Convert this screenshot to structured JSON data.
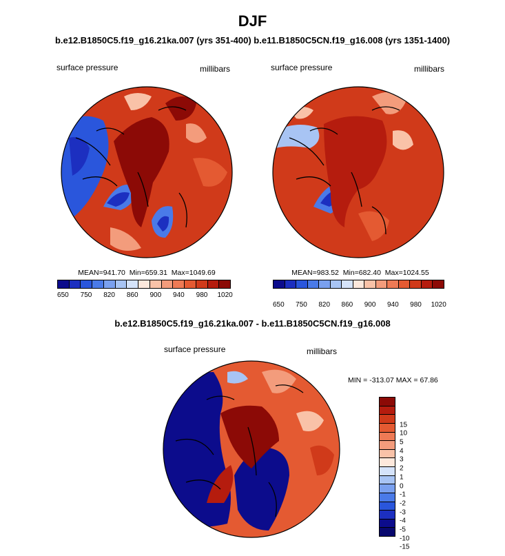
{
  "figure": {
    "title": "DJF",
    "subtitle": "b.e12.B1850C5.f19_g16.21ka.007 (yrs 351-400) b.e11.B1850C5CN.f19_g16.008 (yrs 1351-1400)",
    "diff_title": "b.e12.B1850C5.f19_g16.21ka.007 - b.e11.B1850C5CN.f19_g16.008"
  },
  "chart_data": [
    {
      "type": "heatmap",
      "projection": "polar stereographic (north pole)",
      "left_label": "surface pressure",
      "right_label": "millibars",
      "stats": {
        "mean_label": "MEAN=",
        "mean": "941.70",
        "min_label": "Min=",
        "min": "659.31",
        "max_label": "Max=",
        "max": "1049.69"
      },
      "colorbar": {
        "orientation": "horizontal",
        "tick_labels": [
          "650",
          "750",
          "820",
          "860",
          "900",
          "940",
          "980",
          "1020"
        ],
        "colors": [
          "#0c0c8c",
          "#1c2fc0",
          "#2a56dc",
          "#4a7ae8",
          "#7aa0ef",
          "#a8c4f4",
          "#d5e3fa",
          "#fde8dc",
          "#f9c2a8",
          "#f39c7c",
          "#ee7a55",
          "#e45a32",
          "#d03a1a",
          "#b51c0e",
          "#8c0a06"
        ]
      }
    },
    {
      "type": "heatmap",
      "projection": "polar stereographic (north pole)",
      "left_label": "surface pressure",
      "right_label": "millibars",
      "stats": {
        "mean_label": "MEAN=",
        "mean": "983.52",
        "min_label": "Min=",
        "min": "682.40",
        "max_label": "Max=",
        "max": "1024.55"
      },
      "colorbar": {
        "orientation": "horizontal",
        "tick_labels": [
          "650",
          "750",
          "820",
          "860",
          "900",
          "940",
          "980",
          "1020"
        ],
        "colors": [
          "#0c0c8c",
          "#1c2fc0",
          "#2a56dc",
          "#4a7ae8",
          "#7aa0ef",
          "#a8c4f4",
          "#d5e3fa",
          "#fde8dc",
          "#f9c2a8",
          "#f39c7c",
          "#ee7a55",
          "#e45a32",
          "#d03a1a",
          "#b51c0e",
          "#8c0a06"
        ]
      }
    },
    {
      "type": "heatmap",
      "projection": "polar stereographic (north pole)",
      "left_label": "surface pressure",
      "right_label": "millibars",
      "stats": {
        "min_label": "MIN =",
        "min": "-313.07",
        "max_label": "MAX =",
        "max": "67.86"
      },
      "colorbar": {
        "orientation": "vertical",
        "tick_labels": [
          "15",
          "10",
          "5",
          "4",
          "3",
          "2",
          "1",
          "0",
          "-1",
          "-2",
          "-3",
          "-4",
          "-5",
          "-10",
          "-15"
        ],
        "colors": [
          "#8c0a06",
          "#b51c0e",
          "#d03a1a",
          "#e45a32",
          "#ee7a55",
          "#f39c7c",
          "#f9c2a8",
          "#fde8dc",
          "#d5e3fa",
          "#a8c4f4",
          "#7aa0ef",
          "#4a7ae8",
          "#2a56dc",
          "#1c2fc0",
          "#0c0c8c",
          "#08086e"
        ]
      }
    }
  ]
}
